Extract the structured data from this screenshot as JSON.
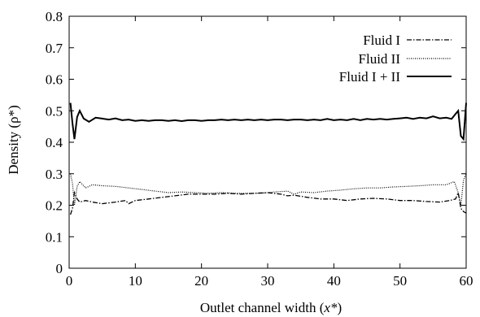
{
  "chart_data": {
    "type": "line",
    "title": "",
    "xlabel": "Outlet channel width (",
    "xlabel_var": "x*",
    "xlabel_close": ")",
    "ylabel": "Density (ρ*)",
    "xlim": [
      0,
      60
    ],
    "ylim": [
      0,
      0.8
    ],
    "x_ticks": [
      "0",
      "10",
      "20",
      "30",
      "40",
      "50",
      "60"
    ],
    "y_ticks": [
      "0",
      "0.1",
      "0.2",
      "0.3",
      "0.4",
      "0.5",
      "0.6",
      "0.7",
      "0.8"
    ],
    "grid": false,
    "legend_position": "top-right",
    "series": [
      {
        "name": "Fluid I",
        "style": "dash-dot",
        "points": [
          [
            0.2,
            0.17
          ],
          [
            0.5,
            0.19
          ],
          [
            0.8,
            0.24
          ],
          [
            1.2,
            0.22
          ],
          [
            1.6,
            0.21
          ],
          [
            2.5,
            0.215
          ],
          [
            3.5,
            0.21
          ],
          [
            5,
            0.205
          ],
          [
            7,
            0.21
          ],
          [
            8.5,
            0.215
          ],
          [
            9,
            0.205
          ],
          [
            10,
            0.215
          ],
          [
            12,
            0.22
          ],
          [
            14,
            0.225
          ],
          [
            16,
            0.23
          ],
          [
            18,
            0.235
          ],
          [
            20,
            0.235
          ],
          [
            22,
            0.235
          ],
          [
            24,
            0.238
          ],
          [
            26,
            0.235
          ],
          [
            28,
            0.238
          ],
          [
            30,
            0.24
          ],
          [
            32,
            0.235
          ],
          [
            33,
            0.23
          ],
          [
            34,
            0.232
          ],
          [
            36,
            0.225
          ],
          [
            38,
            0.22
          ],
          [
            40,
            0.22
          ],
          [
            42,
            0.215
          ],
          [
            44,
            0.22
          ],
          [
            46,
            0.222
          ],
          [
            48,
            0.22
          ],
          [
            50,
            0.215
          ],
          [
            52,
            0.215
          ],
          [
            54,
            0.212
          ],
          [
            56,
            0.21
          ],
          [
            57.5,
            0.215
          ],
          [
            58.4,
            0.22
          ],
          [
            58.8,
            0.24
          ],
          [
            59.2,
            0.19
          ],
          [
            59.6,
            0.18
          ],
          [
            60,
            0.175
          ]
        ]
      },
      {
        "name": "Fluid II",
        "style": "dotted",
        "points": [
          [
            0.2,
            0.3
          ],
          [
            0.5,
            0.27
          ],
          [
            0.8,
            0.2
          ],
          [
            1.2,
            0.26
          ],
          [
            1.6,
            0.275
          ],
          [
            2.5,
            0.255
          ],
          [
            3.5,
            0.265
          ],
          [
            5,
            0.262
          ],
          [
            7,
            0.26
          ],
          [
            9,
            0.255
          ],
          [
            11,
            0.25
          ],
          [
            13,
            0.245
          ],
          [
            15,
            0.24
          ],
          [
            17,
            0.242
          ],
          [
            19,
            0.24
          ],
          [
            21,
            0.238
          ],
          [
            23,
            0.24
          ],
          [
            25,
            0.238
          ],
          [
            27,
            0.238
          ],
          [
            29,
            0.238
          ],
          [
            31,
            0.242
          ],
          [
            33,
            0.245
          ],
          [
            34,
            0.235
          ],
          [
            35,
            0.242
          ],
          [
            37,
            0.24
          ],
          [
            39,
            0.245
          ],
          [
            41,
            0.248
          ],
          [
            43,
            0.252
          ],
          [
            45,
            0.255
          ],
          [
            47,
            0.255
          ],
          [
            49,
            0.258
          ],
          [
            51,
            0.26
          ],
          [
            53,
            0.262
          ],
          [
            55,
            0.265
          ],
          [
            57,
            0.265
          ],
          [
            58.2,
            0.275
          ],
          [
            58.8,
            0.24
          ],
          [
            59.2,
            0.2
          ],
          [
            59.6,
            0.28
          ],
          [
            60,
            0.3
          ]
        ]
      },
      {
        "name": "Fluid I + II",
        "style": "solid",
        "points": [
          [
            0.2,
            0.525
          ],
          [
            0.5,
            0.46
          ],
          [
            0.8,
            0.41
          ],
          [
            1.2,
            0.48
          ],
          [
            1.6,
            0.5
          ],
          [
            2.2,
            0.475
          ],
          [
            3,
            0.465
          ],
          [
            4,
            0.478
          ],
          [
            5,
            0.475
          ],
          [
            6,
            0.472
          ],
          [
            7,
            0.476
          ],
          [
            8,
            0.47
          ],
          [
            9,
            0.472
          ],
          [
            10,
            0.468
          ],
          [
            11,
            0.47
          ],
          [
            12,
            0.468
          ],
          [
            13,
            0.47
          ],
          [
            14,
            0.47
          ],
          [
            15,
            0.468
          ],
          [
            16,
            0.47
          ],
          [
            17,
            0.467
          ],
          [
            18,
            0.47
          ],
          [
            19,
            0.47
          ],
          [
            20,
            0.468
          ],
          [
            21,
            0.47
          ],
          [
            22,
            0.47
          ],
          [
            23,
            0.472
          ],
          [
            24,
            0.47
          ],
          [
            25,
            0.472
          ],
          [
            26,
            0.47
          ],
          [
            27,
            0.472
          ],
          [
            28,
            0.47
          ],
          [
            29,
            0.472
          ],
          [
            30,
            0.47
          ],
          [
            31,
            0.472
          ],
          [
            32,
            0.472
          ],
          [
            33,
            0.47
          ],
          [
            34,
            0.472
          ],
          [
            35,
            0.472
          ],
          [
            36,
            0.47
          ],
          [
            37,
            0.472
          ],
          [
            38,
            0.47
          ],
          [
            39,
            0.474
          ],
          [
            40,
            0.47
          ],
          [
            41,
            0.472
          ],
          [
            42,
            0.47
          ],
          [
            43,
            0.474
          ],
          [
            44,
            0.47
          ],
          [
            45,
            0.474
          ],
          [
            46,
            0.472
          ],
          [
            47,
            0.474
          ],
          [
            48,
            0.472
          ],
          [
            49,
            0.474
          ],
          [
            50,
            0.476
          ],
          [
            51,
            0.478
          ],
          [
            52,
            0.474
          ],
          [
            53,
            0.478
          ],
          [
            54,
            0.476
          ],
          [
            55,
            0.482
          ],
          [
            56,
            0.476
          ],
          [
            57,
            0.478
          ],
          [
            57.8,
            0.474
          ],
          [
            58.4,
            0.49
          ],
          [
            58.8,
            0.5
          ],
          [
            59.2,
            0.42
          ],
          [
            59.6,
            0.41
          ],
          [
            60,
            0.525
          ]
        ]
      }
    ]
  }
}
